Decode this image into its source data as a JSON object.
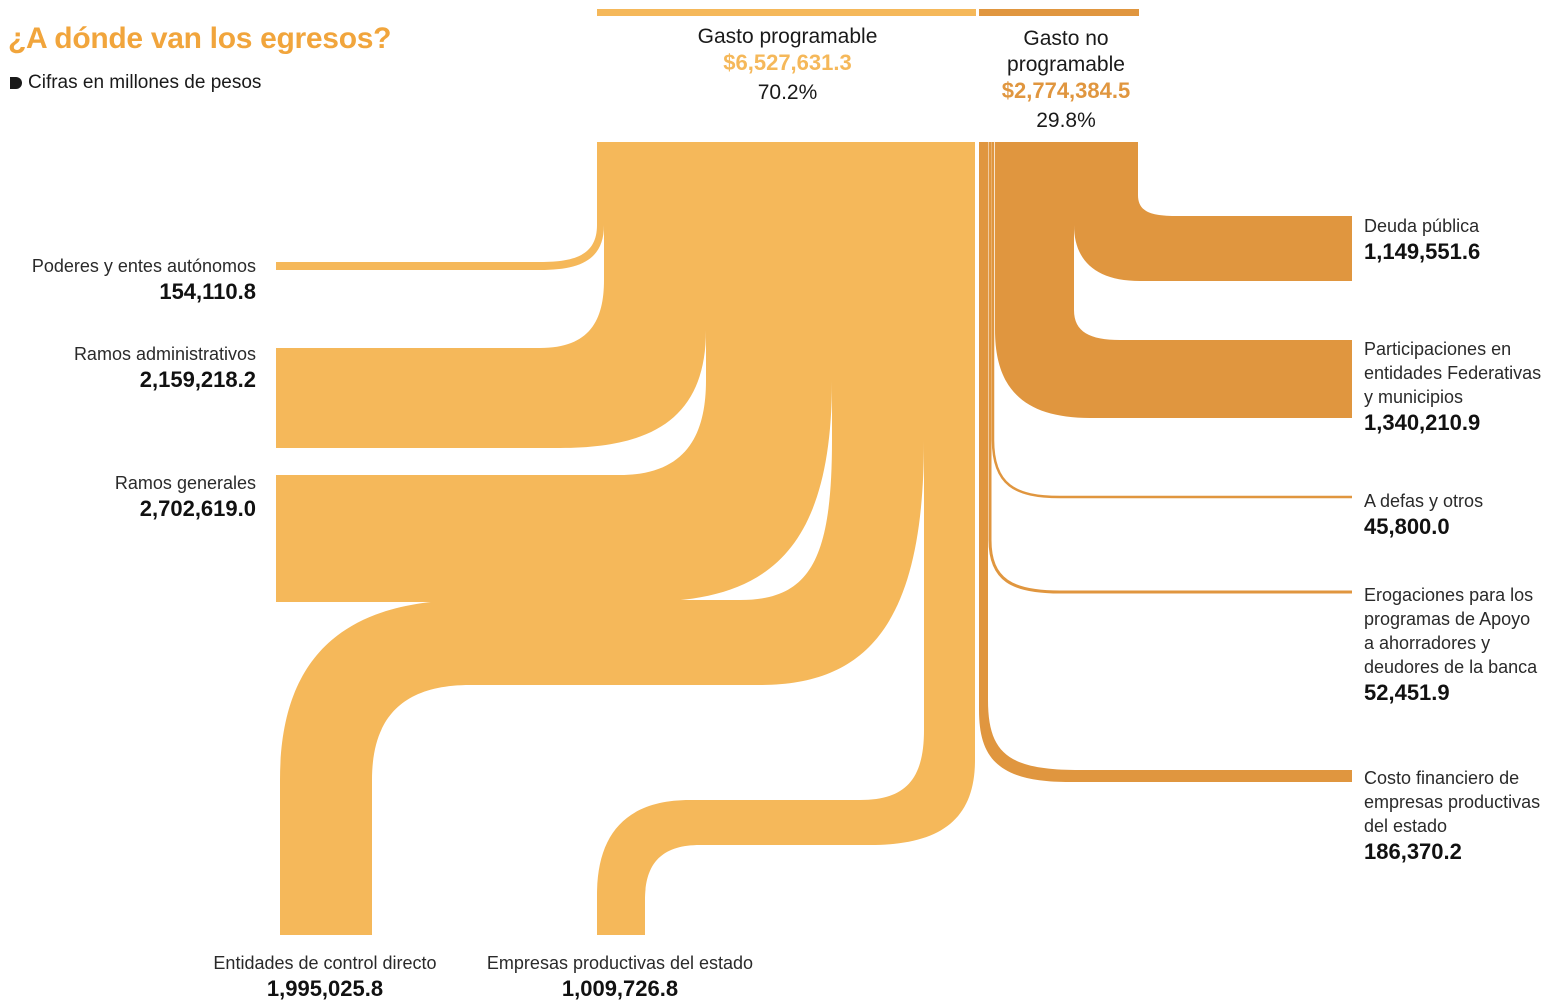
{
  "title": "¿A dónde van los egresos?",
  "subtitle": "Cifras en millones de pesos",
  "colors": {
    "programable": "#f5b85a",
    "no_programable": "#e0963f",
    "title": "#f1a53c"
  },
  "headers": {
    "programable": {
      "label": "Gasto programable",
      "amount": "$6,527,631.3",
      "pct": "70.2%"
    },
    "no_programable": {
      "label_1": "Gasto no",
      "label_2": "programable",
      "amount": "$2,774,384.5",
      "pct": "29.8%"
    }
  },
  "left_items": [
    {
      "label": "Poderes y entes autónomos",
      "value": "154,110.8"
    },
    {
      "label": "Ramos administrativos",
      "value": "2,159,218.2"
    },
    {
      "label": "Ramos generales",
      "value": "2,702,619.0"
    }
  ],
  "bottom_items": [
    {
      "label": "Entidades de control directo",
      "value": "1,995,025.8"
    },
    {
      "label": "Empresas productivas del estado",
      "value": "1,009,726.8"
    }
  ],
  "right_items": [
    {
      "lines": [
        "Deuda pública"
      ],
      "value": "1,149,551.6"
    },
    {
      "lines": [
        "Participaciones en",
        "entidades Federativas",
        "y municipios"
      ],
      "value": "1,340,210.9"
    },
    {
      "lines": [
        "A defas y otros"
      ],
      "value": "45,800.0"
    },
    {
      "lines": [
        "Erogaciones para los",
        "programas de Apoyo",
        "a ahorradores y",
        "deudores de la banca"
      ],
      "value": "52,451.9"
    },
    {
      "lines": [
        "Costo financiero de",
        "empresas productivas",
        "del estado"
      ],
      "value": "186,370.2"
    }
  ],
  "chart_data": {
    "type": "sankey",
    "units": "millones de pesos",
    "title": "¿A dónde van los egresos?",
    "sources": [
      {
        "name": "Gasto programable",
        "value": 6527631.3,
        "percent": 70.2
      },
      {
        "name": "Gasto no programable",
        "value": 2774384.5,
        "percent": 29.8
      }
    ],
    "flows": [
      {
        "from": "Gasto programable",
        "to": "Poderes y entes autónomos",
        "value": 154110.8
      },
      {
        "from": "Gasto programable",
        "to": "Ramos administrativos",
        "value": 2159218.2
      },
      {
        "from": "Gasto programable",
        "to": "Ramos generales",
        "value": 2702619.0
      },
      {
        "from": "Gasto programable",
        "to": "Entidades de control directo",
        "value": 1995025.8
      },
      {
        "from": "Gasto programable",
        "to": "Empresas productivas del estado",
        "value": 1009726.8
      },
      {
        "from": "Gasto no programable",
        "to": "Deuda pública",
        "value": 1149551.6
      },
      {
        "from": "Gasto no programable",
        "to": "Participaciones en entidades Federativas y municipios",
        "value": 1340210.9
      },
      {
        "from": "Gasto no programable",
        "to": "A defas y otros",
        "value": 45800.0
      },
      {
        "from": "Gasto no programable",
        "to": "Erogaciones para los programas de Apoyo a ahorradores y deudores de la banca",
        "value": 52451.9
      },
      {
        "from": "Gasto no programable",
        "to": "Costo financiero de empresas productivas del estado",
        "value": 186370.2
      }
    ]
  }
}
